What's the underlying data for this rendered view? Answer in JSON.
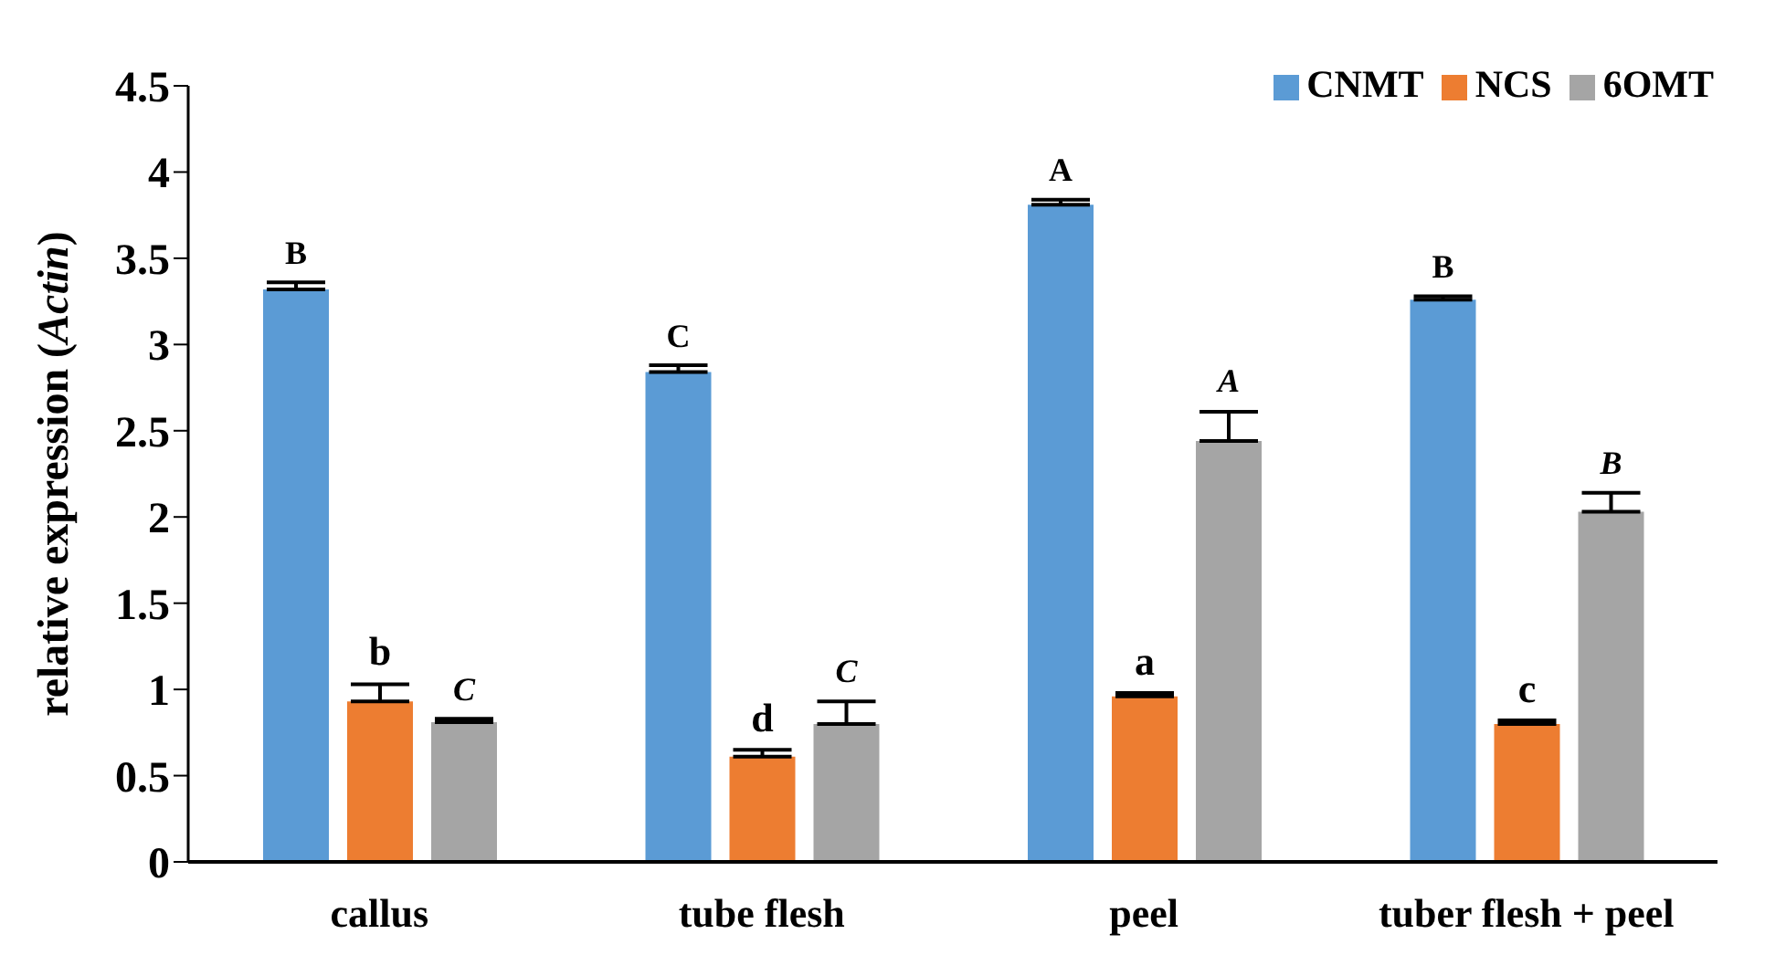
{
  "chart_data": {
    "type": "bar",
    "ylabel": "relative expression (Actin)",
    "categories": [
      "callus",
      "tube flesh",
      "peel",
      "tuber flesh + peel"
    ],
    "series": [
      {
        "name": "CNMT",
        "color": "#5b9bd5",
        "values": [
          3.32,
          2.84,
          3.81,
          3.26
        ],
        "errors": [
          0.04,
          0.04,
          0.03,
          0.02
        ],
        "value_labels": [
          "B",
          "C",
          "A",
          "B"
        ]
      },
      {
        "name": "NCS",
        "color": "#ed7d31",
        "values": [
          0.93,
          0.61,
          0.96,
          0.8
        ],
        "errors": [
          0.1,
          0.04,
          0.02,
          0.02
        ],
        "value_labels": [
          "b",
          "d",
          "a",
          "c"
        ]
      },
      {
        "name": "6OMT",
        "color": "#a5a5a5",
        "values": [
          0.81,
          0.8,
          2.44,
          2.03
        ],
        "errors": [
          0.02,
          0.13,
          0.17,
          0.11
        ],
        "value_labels": [
          "C",
          "C",
          "A",
          "B"
        ]
      }
    ],
    "ylim": [
      0,
      4.5
    ],
    "yticks": [
      0,
      0.5,
      1,
      1.5,
      2,
      2.5,
      3,
      3.5,
      4,
      4.5
    ],
    "grid": false,
    "legend": "top right"
  }
}
